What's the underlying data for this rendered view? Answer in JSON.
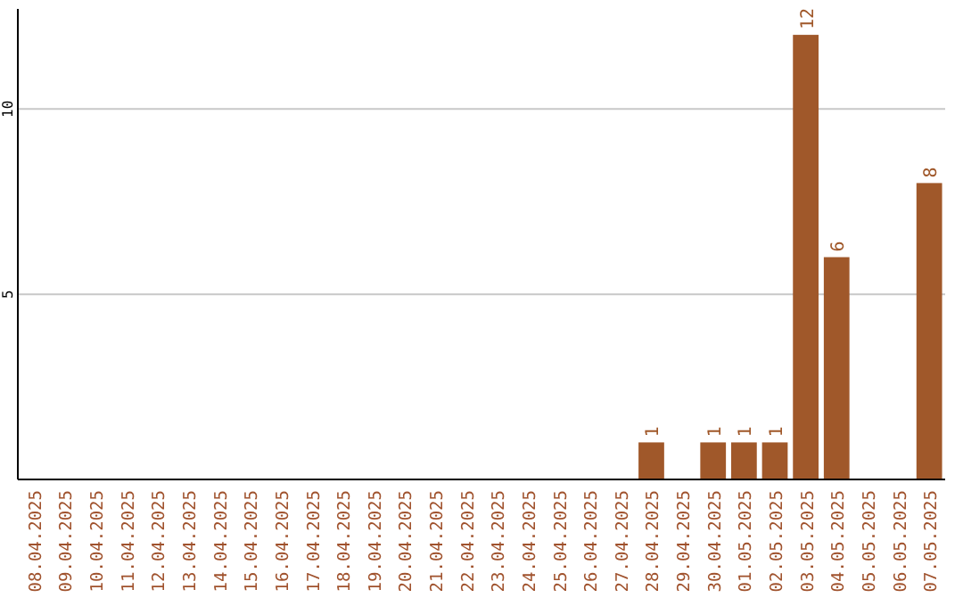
{
  "chart_data": {
    "type": "bar",
    "categories": [
      "08.04.2025",
      "09.04.2025",
      "10.04.2025",
      "11.04.2025",
      "12.04.2025",
      "13.04.2025",
      "14.04.2025",
      "15.04.2025",
      "16.04.2025",
      "17.04.2025",
      "18.04.2025",
      "19.04.2025",
      "20.04.2025",
      "21.04.2025",
      "22.04.2025",
      "23.04.2025",
      "24.04.2025",
      "25.04.2025",
      "26.04.2025",
      "27.04.2025",
      "28.04.2025",
      "29.04.2025",
      "30.04.2025",
      "01.05.2025",
      "02.05.2025",
      "03.05.2025",
      "04.05.2025",
      "05.05.2025",
      "06.05.2025",
      "07.05.2025"
    ],
    "values": [
      0,
      0,
      0,
      0,
      0,
      0,
      0,
      0,
      0,
      0,
      0,
      0,
      0,
      0,
      0,
      0,
      0,
      0,
      0,
      0,
      1,
      0,
      1,
      1,
      1,
      12,
      6,
      0,
      0,
      8
    ],
    "value_labels": [
      null,
      null,
      null,
      null,
      null,
      null,
      null,
      null,
      null,
      null,
      null,
      null,
      null,
      null,
      null,
      null,
      null,
      null,
      null,
      null,
      "1",
      null,
      "1",
      "1",
      "1",
      "12",
      "6",
      null,
      null,
      "8"
    ],
    "color": "#a0582a",
    "ylim": [
      0,
      12.7
    ],
    "yticks": [
      5,
      10
    ],
    "grid": "y"
  }
}
